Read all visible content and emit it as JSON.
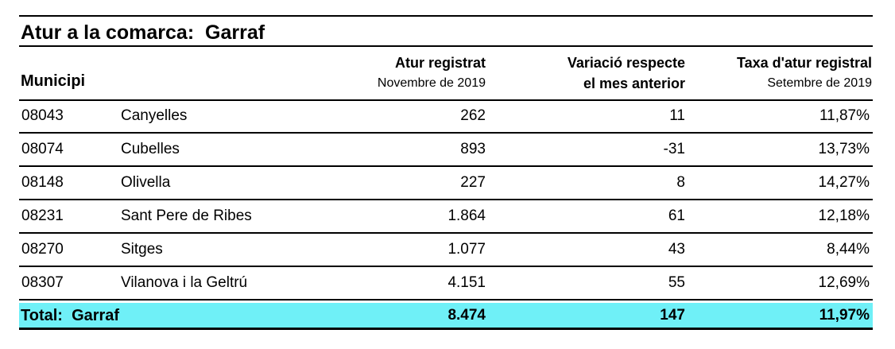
{
  "title": "Atur a la comarca:  Garraf",
  "header": {
    "municipi": "Municipi",
    "columns": [
      {
        "title": "Atur registrat",
        "subtitle": "Novembre de 2019"
      },
      {
        "title": "Variació respecte",
        "subtitle": "el mes anterior"
      },
      {
        "title": "Taxa d'atur registral",
        "subtitle": "Setembre de 2019"
      }
    ]
  },
  "table": {
    "rows": [
      [
        "08043",
        "Canyelles",
        "262",
        "11",
        "11,87%"
      ],
      [
        "08074",
        "Cubelles",
        "893",
        "-31",
        "13,73%"
      ],
      [
        "08148",
        "Olivella",
        "227",
        "8",
        "14,27%"
      ],
      [
        "08231",
        "Sant Pere de Ribes",
        "1.864",
        "61",
        "12,18%"
      ],
      [
        "08270",
        "Sitges",
        "1.077",
        "43",
        "8,44%"
      ],
      [
        "08307",
        "Vilanova i la Geltrú",
        "4.151",
        "55",
        "12,69%"
      ]
    ]
  },
  "total": [
    "Total:  Garraf",
    "8.474",
    "147",
    "11,97%"
  ]
}
